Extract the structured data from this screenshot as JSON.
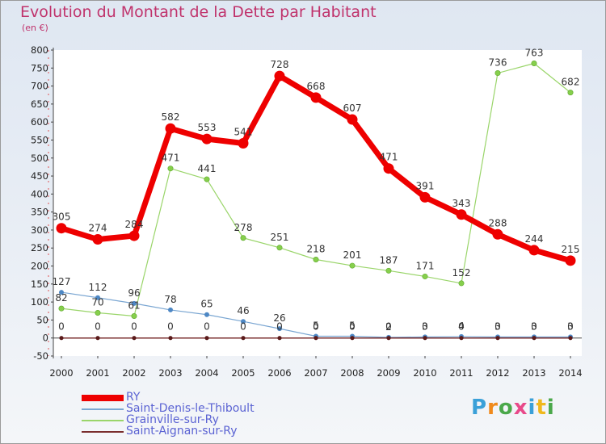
{
  "title": "Evolution du Montant de la Dette par Habitant",
  "unit": "(en €)",
  "logo": {
    "text": "Proxiti",
    "colors": [
      "#3aa0d8",
      "#f08a1c",
      "#4aa84a",
      "#e84a8a",
      "#3aa0d8",
      "#f0b81c",
      "#4aa84a"
    ]
  },
  "chart_data": {
    "type": "line",
    "title": "Evolution du Montant de la Dette par Habitant",
    "ylabel": "(en €)",
    "xlabel": "",
    "x": [
      "2000",
      "2001",
      "2002",
      "2003",
      "2004",
      "2005",
      "2006",
      "2007",
      "2008",
      "2009",
      "2010",
      "2011",
      "2012",
      "2013",
      "2014"
    ],
    "ylim": [
      -50,
      800
    ],
    "yticks": [
      -50,
      0,
      50,
      100,
      150,
      200,
      250,
      300,
      350,
      400,
      450,
      500,
      550,
      600,
      650,
      700,
      750,
      800
    ],
    "grid": false,
    "legend": "bottom-left",
    "series": [
      {
        "name": "RY",
        "color": "#ee0000",
        "values": [
          305,
          274,
          284,
          582,
          553,
          541,
          728,
          668,
          607,
          471,
          391,
          343,
          288,
          244,
          215
        ],
        "labels": [
          "305",
          "274",
          "284",
          "582",
          "553",
          "541",
          "728",
          "668",
          "607",
          "471",
          "391",
          "343",
          "288",
          "244",
          "215"
        ]
      },
      {
        "name": "Saint-Denis-le-Thiboult",
        "color": "#5b95c8",
        "values": [
          127,
          112,
          96,
          78,
          65,
          46,
          26,
          5,
          5,
          2,
          3,
          4,
          3,
          3,
          3
        ],
        "labels": [
          "127",
          "112",
          "96",
          "78",
          "65",
          "46",
          "26",
          "5",
          "5",
          "2",
          "3",
          "4",
          "3",
          "3",
          "3"
        ]
      },
      {
        "name": "Grainville-sur-Ry",
        "color": "#86cf4c",
        "values": [
          82,
          70,
          61,
          471,
          441,
          278,
          251,
          218,
          201,
          187,
          171,
          152,
          736,
          763,
          682
        ],
        "labels": [
          "82",
          "70",
          "61",
          "471",
          "441",
          "278",
          "251",
          "218",
          "201",
          "187",
          "171",
          "152",
          "736",
          "763",
          "682"
        ]
      },
      {
        "name": "Saint-Aignan-sur-Ry",
        "color": "#7a2e2e",
        "values": [
          0,
          0,
          0,
          0,
          0,
          0,
          0,
          0,
          0,
          0,
          0,
          0,
          0,
          0,
          0
        ],
        "labels": [
          "0",
          "0",
          "0",
          "0",
          "0",
          "0",
          "0",
          "0",
          "0",
          "0",
          "0",
          "0",
          "0",
          "0",
          "0"
        ]
      }
    ]
  }
}
